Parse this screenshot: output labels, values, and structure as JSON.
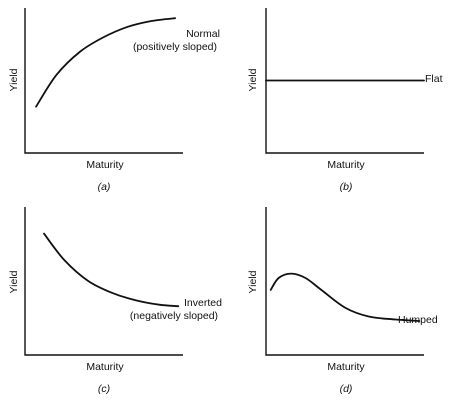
{
  "chart_data": [
    {
      "type": "line",
      "xlabel": "Maturity",
      "ylabel": "Yield",
      "caption": "(a)",
      "series": [
        {
          "name": "Normal",
          "label_lines": [
            "Normal",
            "(positively sloped)"
          ],
          "x": [
            0.07,
            0.2,
            0.35,
            0.5,
            0.65,
            0.8,
            0.95
          ],
          "y": [
            0.32,
            0.54,
            0.7,
            0.8,
            0.87,
            0.91,
            0.93
          ]
        }
      ]
    },
    {
      "type": "line",
      "xlabel": "Maturity",
      "ylabel": "Yield",
      "caption": "(b)",
      "series": [
        {
          "name": "Flat",
          "label_lines": [
            "Flat"
          ],
          "x": [
            0.0,
            1.0
          ],
          "y": [
            0.5,
            0.5
          ]
        }
      ]
    },
    {
      "type": "line",
      "xlabel": "Maturity",
      "ylabel": "Yield",
      "caption": "(c)",
      "series": [
        {
          "name": "Inverted",
          "label_lines": [
            "Inverted",
            "(negatively sloped)"
          ],
          "x": [
            0.12,
            0.25,
            0.4,
            0.55,
            0.7,
            0.85,
            0.97
          ],
          "y": [
            0.82,
            0.64,
            0.5,
            0.42,
            0.37,
            0.34,
            0.33
          ]
        }
      ]
    },
    {
      "type": "line",
      "xlabel": "Maturity",
      "ylabel": "Yield",
      "caption": "(d)",
      "series": [
        {
          "name": "Humped",
          "label_lines": [
            "Humped"
          ],
          "x": [
            0.03,
            0.08,
            0.16,
            0.25,
            0.35,
            0.5,
            0.65,
            0.82,
            0.97
          ],
          "y": [
            0.44,
            0.52,
            0.55,
            0.52,
            0.44,
            0.32,
            0.26,
            0.24,
            0.23
          ]
        }
      ]
    }
  ]
}
